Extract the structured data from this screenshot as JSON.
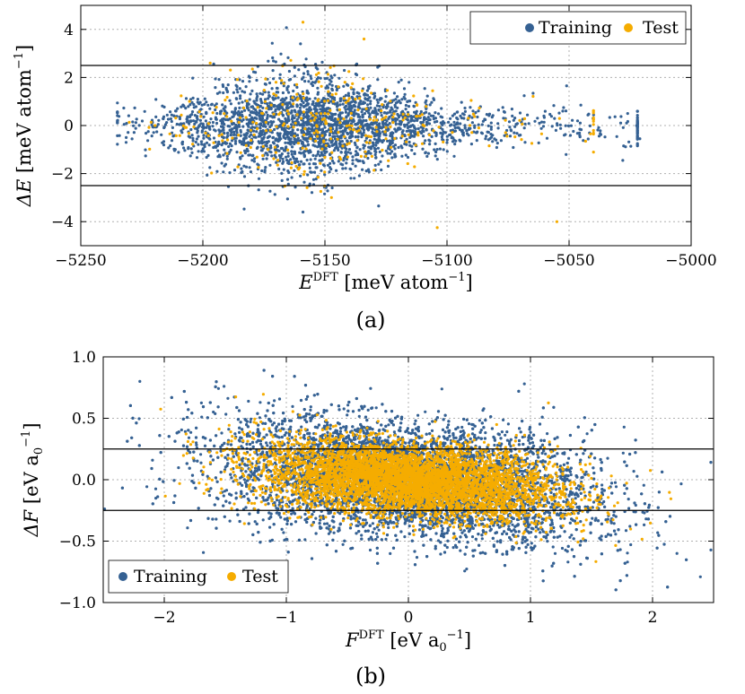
{
  "colors": {
    "training": "#356193",
    "test": "#f5ac00"
  },
  "chart_data": [
    {
      "type": "scatter",
      "panel": "a",
      "caption": "(a)",
      "xlabel": {
        "main": "E",
        "sup": "DFT",
        "unit_pre": " [meV atom",
        "unit_exp": "−1",
        "unit_post": "]"
      },
      "ylabel": {
        "main": "ΔE",
        "unit_pre": " [meV atom",
        "unit_exp": "−1",
        "unit_post": "]"
      },
      "xlim": [
        -5250,
        -5000
      ],
      "ylim": [
        -5,
        5
      ],
      "xticks": [
        -5250,
        -5200,
        -5150,
        -5100,
        -5050,
        -5000
      ],
      "xtick_labels": [
        "−5250",
        "−5200",
        "−5150",
        "−5100",
        "−5050",
        "−5000"
      ],
      "yticks": [
        -4,
        -2,
        0,
        2,
        4
      ],
      "ytick_labels": [
        "−4",
        "−2",
        "0",
        "2",
        "4"
      ],
      "hlines": [
        2.5,
        -2.5
      ],
      "legend": {
        "position": "top-right",
        "entries": [
          "Training",
          "Test"
        ]
      },
      "series": [
        {
          "name": "Training",
          "color_key": "training",
          "n": 2600,
          "x_center": -5160,
          "x_spread": 28,
          "y_spread": 0.9,
          "x_min": -5235,
          "x_max": -5022
        },
        {
          "name": "Test",
          "color_key": "test",
          "n": 320,
          "x_center": -5160,
          "x_spread": 28,
          "y_spread": 0.95,
          "x_min": -5235,
          "x_max": -5040
        }
      ],
      "notable_test_points": [
        {
          "x": -5159,
          "y": 4.3
        },
        {
          "x": -5134,
          "y": 3.6
        },
        {
          "x": -5104,
          "y": -4.25
        },
        {
          "x": -5055,
          "y": -4.0
        },
        {
          "x": -5197,
          "y": 2.6
        }
      ],
      "notable_training_points": [
        {
          "x": -5026,
          "y": 0.5
        },
        {
          "x": -5021,
          "y": -0.55
        },
        {
          "x": -5028,
          "y": -1.45
        },
        {
          "x": -5051,
          "y": 1.65
        },
        {
          "x": -5159,
          "y": -3.6
        },
        {
          "x": -5128,
          "y": -3.35
        },
        {
          "x": -5160,
          "y": 3.4
        }
      ]
    },
    {
      "type": "scatter",
      "panel": "b",
      "caption": "(b)",
      "xlabel": {
        "main": "F",
        "sup": "DFT",
        "unit_pre": " [eV a",
        "unit_sub": "0",
        "unit_exp": "−1",
        "unit_post": "]"
      },
      "ylabel": {
        "main": "ΔF",
        "unit_pre": " [eV a",
        "unit_sub": "0",
        "unit_exp": "−1",
        "unit_post": "]"
      },
      "xlim": [
        -2.5,
        2.5
      ],
      "ylim": [
        -1.0,
        1.0
      ],
      "xticks": [
        -2,
        -1,
        0,
        1,
        2
      ],
      "xtick_labels": [
        "−2",
        "−1",
        "0",
        "1",
        "2"
      ],
      "yticks": [
        -1.0,
        -0.5,
        0.0,
        0.5,
        1.0
      ],
      "ytick_labels": [
        "−1.0",
        "−0.5",
        "0.0",
        "0.5",
        "1.0"
      ],
      "hlines": [
        0.25,
        -0.25
      ],
      "legend": {
        "position": "bottom-left",
        "entries": [
          "Training",
          "Test"
        ]
      },
      "series": [
        {
          "name": "Training",
          "color_key": "training",
          "n": 9000,
          "x_spread": 0.75,
          "y_spread": 0.2,
          "slope": -0.1
        },
        {
          "name": "Test",
          "color_key": "test",
          "n": 5200,
          "x_spread": 0.6,
          "y_spread": 0.13,
          "slope": -0.08
        }
      ],
      "notable_points": [
        {
          "x": -2.2,
          "y": 0.8
        },
        {
          "x": 0.95,
          "y": 0.78
        },
        {
          "x": 2.2,
          "y": -0.6
        }
      ]
    }
  ]
}
